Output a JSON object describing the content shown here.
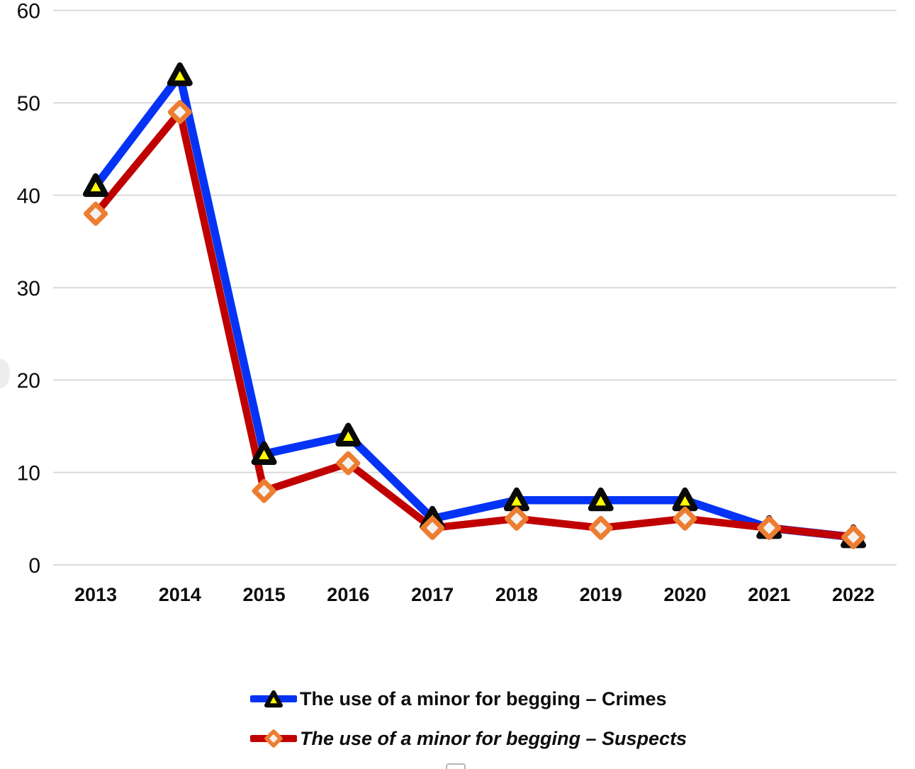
{
  "chart_data": {
    "type": "line",
    "x": [
      "2013",
      "2014",
      "2015",
      "2016",
      "2017",
      "2018",
      "2019",
      "2020",
      "2021",
      "2022"
    ],
    "series": [
      {
        "name": "The use of a minor for begging – Crimes",
        "values": [
          41,
          53,
          12,
          14,
          5,
          7,
          7,
          7,
          4,
          3
        ],
        "color": "#0433f5",
        "marker": "triangle",
        "marker_fill": "#ffff00",
        "marker_stroke": "#0a0a0a",
        "italic": false
      },
      {
        "name": "The use of a minor for begging – Suspects",
        "values": [
          38,
          49,
          8,
          11,
          4,
          5,
          4,
          5,
          4,
          3
        ],
        "color": "#c00000",
        "marker": "diamond",
        "marker_fill": "#f4f2ef",
        "marker_stroke": "#ed7d31",
        "italic": true
      }
    ],
    "title": "",
    "xlabel": "",
    "ylabel": "",
    "ylim": [
      0,
      60
    ],
    "yticks": [
      0,
      10,
      20,
      30,
      40,
      50,
      60
    ],
    "grid": true,
    "grid_color": "#d9d9d9",
    "legend_position": "bottom-center"
  }
}
